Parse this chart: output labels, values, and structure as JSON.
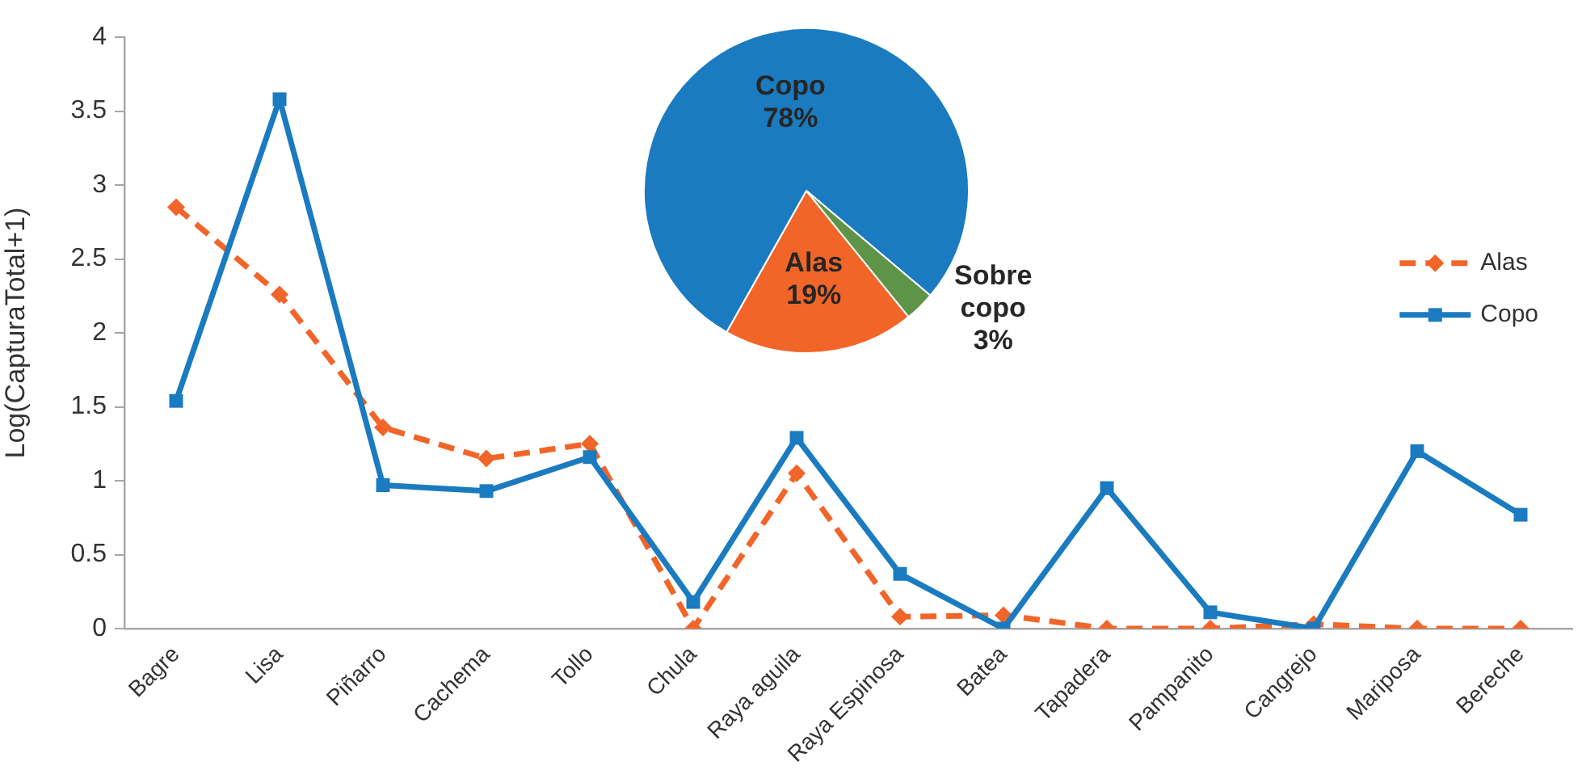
{
  "chart_data": [
    {
      "type": "line",
      "ylabel": "Log(CapturaTotal+1)",
      "categories": [
        "Bagre",
        "Lisa",
        "Piñarro",
        "Cachema",
        "Tollo",
        "Chula",
        "Raya aguila",
        "Raya Espinosa",
        "Batea",
        "Tapadera",
        "Pampanito",
        "Cangrejo",
        "Mariposa",
        "Bereche"
      ],
      "series": [
        {
          "name": "Alas",
          "color": "#f26529",
          "marker": "diamond",
          "line_style": "dashed",
          "values": [
            2.85,
            2.26,
            1.36,
            1.15,
            1.25,
            0,
            1.05,
            0.08,
            0.09,
            0,
            0,
            0.03,
            0,
            0
          ]
        },
        {
          "name": "Copo",
          "color": "#1a7bc0",
          "marker": "square",
          "line_style": "solid",
          "values": [
            1.54,
            3.58,
            0.97,
            0.93,
            1.16,
            0.18,
            1.29,
            0.37,
            0,
            0.95,
            0.11,
            0,
            1.2,
            0.77
          ]
        }
      ],
      "ylim": [
        0,
        4
      ],
      "yticks": [
        0,
        0.5,
        1,
        1.5,
        2,
        2.5,
        3,
        3.5,
        4
      ],
      "grid": false,
      "legend": "right"
    },
    {
      "type": "pie",
      "categories": [
        "Alas",
        "Copo",
        "Sobre copo"
      ],
      "values": [
        19,
        78,
        3
      ],
      "colors": [
        "#f26529",
        "#1a7bc0",
        "#5e9448"
      ],
      "value_labels": [
        "19%",
        "78%",
        "3%"
      ]
    }
  ]
}
